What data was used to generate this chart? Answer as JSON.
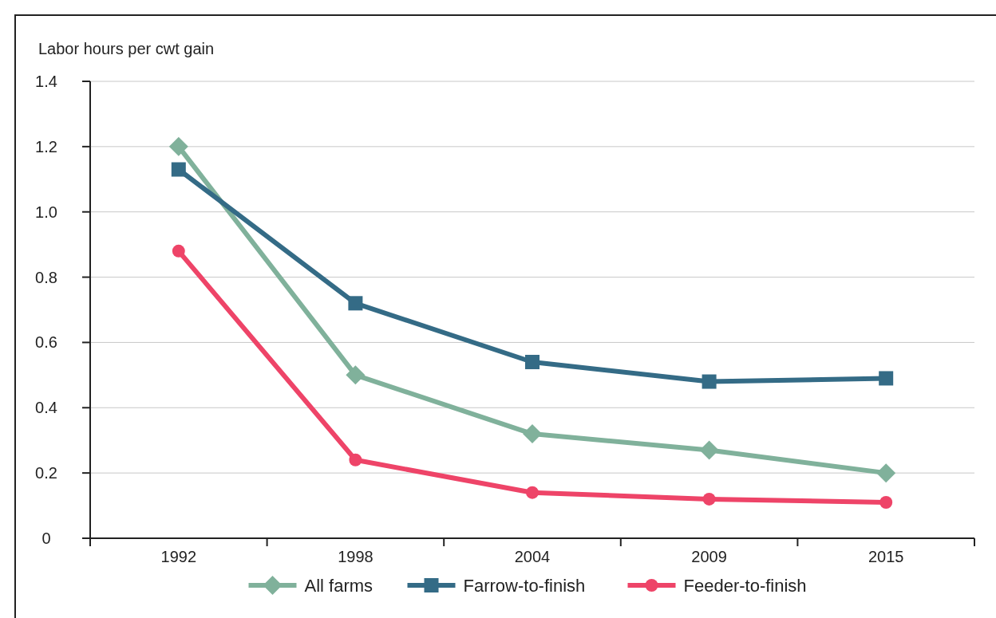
{
  "chart_data": {
    "type": "line",
    "ylabel": "Labor hours per cwt gain",
    "categories": [
      "1992",
      "1998",
      "2004",
      "2009",
      "2015"
    ],
    "series": [
      {
        "name": "All farms",
        "color": "#80b19b",
        "marker": "diamond",
        "values": [
          1.2,
          0.5,
          0.32,
          0.27,
          0.2
        ]
      },
      {
        "name": "Farrow-to-finish",
        "color": "#346b86",
        "marker": "square",
        "values": [
          1.13,
          0.72,
          0.54,
          0.48,
          0.49
        ]
      },
      {
        "name": "Feeder-to-finish",
        "color": "#ee4468",
        "marker": "circle",
        "values": [
          0.88,
          0.24,
          0.14,
          0.12,
          0.11
        ]
      }
    ],
    "ylim": [
      0,
      1.4
    ],
    "yticks": [
      0,
      0.2,
      0.4,
      0.6,
      0.8,
      {
        "value": 1,
        "label": "1.0"
      },
      1.2,
      1.4
    ],
    "grid": "y",
    "legend": "bottom",
    "line_style": "solid"
  }
}
